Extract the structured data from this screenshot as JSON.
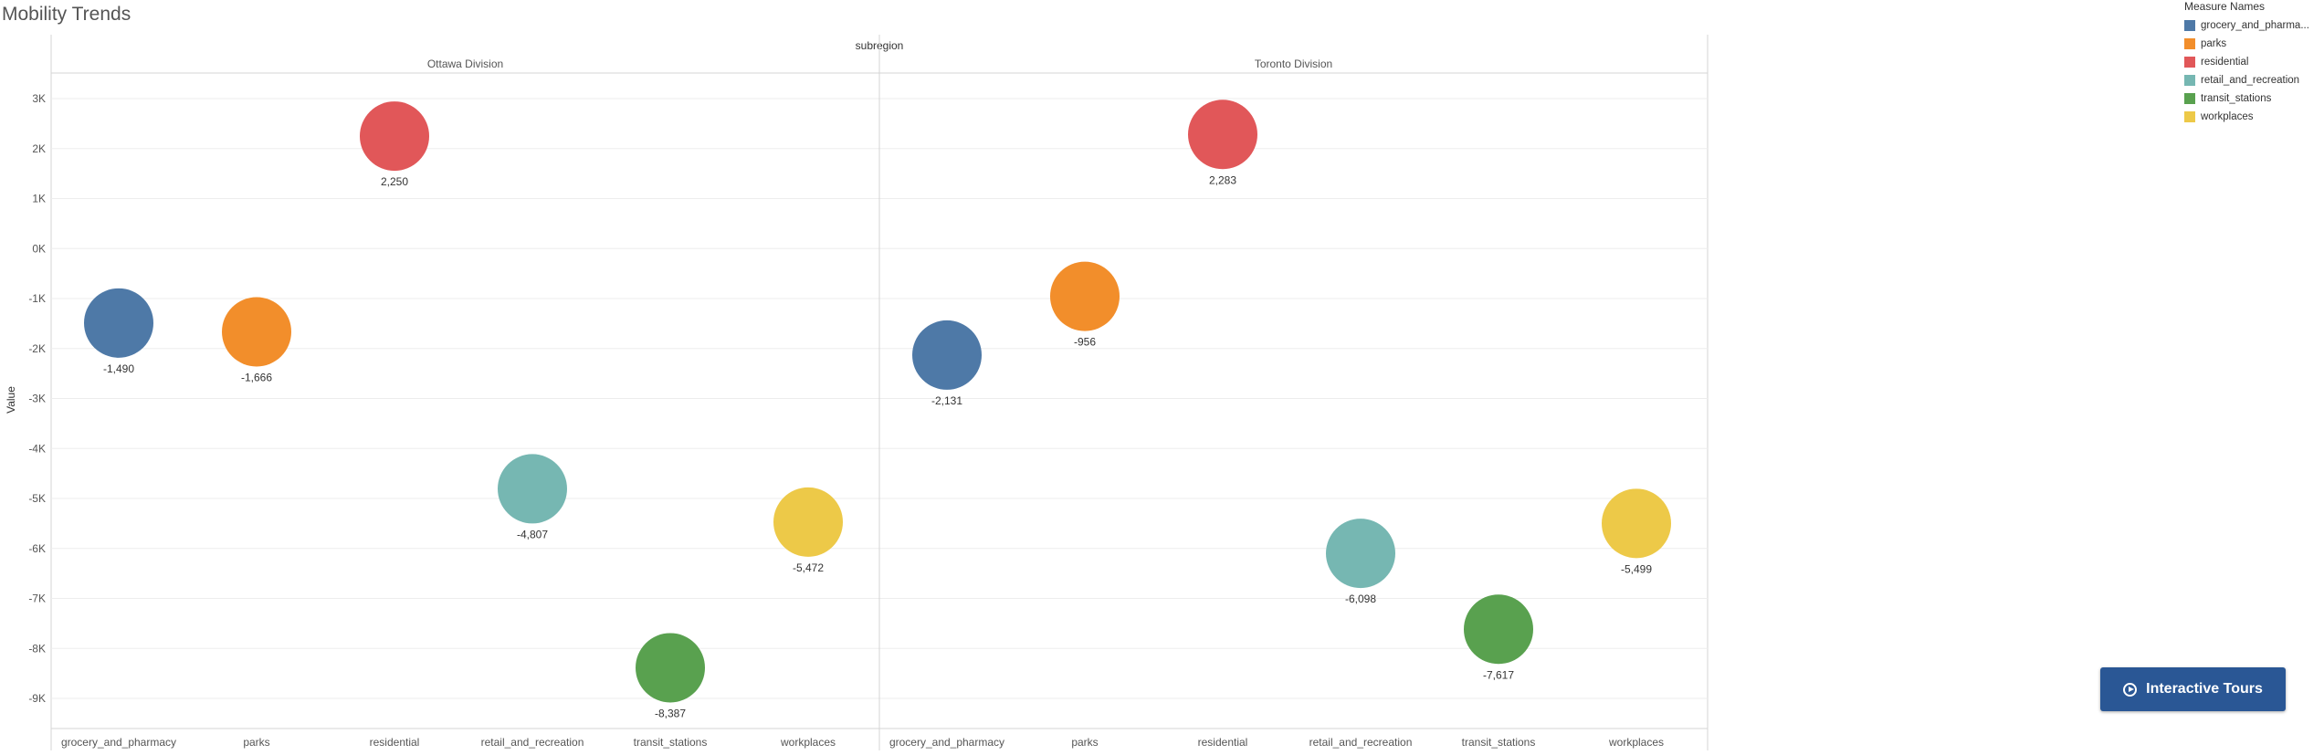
{
  "page": {
    "title": "Mobility Trends"
  },
  "legend": {
    "title": "Measure Names",
    "items": [
      {
        "label": "grocery_and_pharma...",
        "color": "#4e79a7"
      },
      {
        "label": "parks",
        "color": "#f28e2b"
      },
      {
        "label": "residential",
        "color": "#e15759"
      },
      {
        "label": "retail_and_recreation",
        "color": "#76b7b2"
      },
      {
        "label": "transit_stations",
        "color": "#59a14f"
      },
      {
        "label": "workplaces",
        "color": "#edc948"
      }
    ]
  },
  "tour_button": {
    "label": "Interactive Tours",
    "icon": "play-circle-icon"
  },
  "chart_data": {
    "type": "scatter",
    "title": "Mobility Trends",
    "column_header": "subregion",
    "ylabel": "Value",
    "ylim": [
      -9500,
      3500
    ],
    "y_ticks": [
      3000,
      2000,
      1000,
      0,
      -1000,
      -2000,
      -3000,
      -4000,
      -5000,
      -6000,
      -7000,
      -8000,
      -9000
    ],
    "y_tick_labels": [
      "3K",
      "2K",
      "1K",
      "0K",
      "-1K",
      "-2K",
      "-3K",
      "-4K",
      "-5K",
      "-6K",
      "-7K",
      "-8K",
      "-9K"
    ],
    "grid": true,
    "legend_position": "top-right",
    "categories": [
      "grocery_and_pharmacy",
      "parks",
      "residential",
      "retail_and_recreation",
      "transit_stations",
      "workplaces"
    ],
    "colors": [
      "#4e79a7",
      "#f28e2b",
      "#e15759",
      "#76b7b2",
      "#59a14f",
      "#edc948"
    ],
    "panels": [
      {
        "name": "Ottawa Division",
        "values": [
          -1490,
          -1666,
          2250,
          -4807,
          -8387,
          -5472
        ],
        "labels": [
          "-1,490",
          "-1,666",
          "2,250",
          "-4,807",
          "-8,387",
          "-5,472"
        ]
      },
      {
        "name": "Toronto Division",
        "values": [
          -2131,
          -956,
          2283,
          -6098,
          -7617,
          -5499
        ],
        "labels": [
          "-2,131",
          "-956",
          "2,283",
          "-6,098",
          "-7,617",
          "-5,499"
        ]
      }
    ]
  }
}
